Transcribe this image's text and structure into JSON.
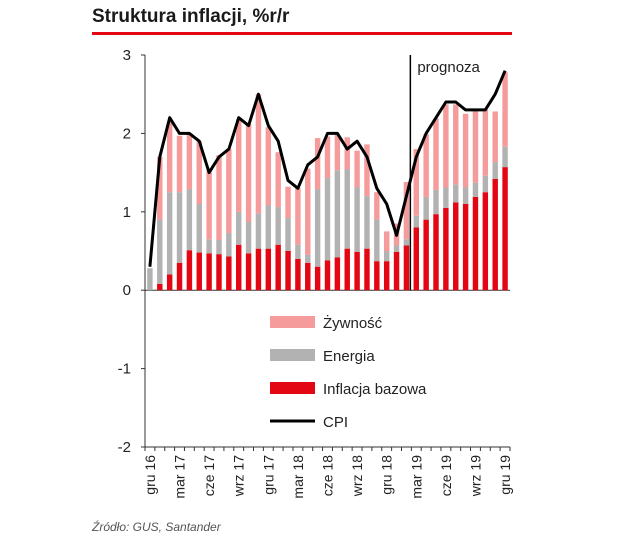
{
  "title": "Struktura inflacji, %r/r",
  "source": "Źródło: GUS, Santander",
  "chart_data": {
    "type": "bar",
    "stacked": true,
    "title": "Struktura inflacji, %r/r",
    "ylim": [
      -2,
      3
    ],
    "yticks": [
      "3",
      "2",
      "1",
      "0",
      "-1",
      "-2"
    ],
    "categories": [
      "gru 16",
      "sty 17",
      "lut 17",
      "mar 17",
      "kwi 17",
      "maj 17",
      "cze 17",
      "lip 17",
      "sie 17",
      "wrz 17",
      "paź 17",
      "lis 17",
      "gru 17",
      "sty 18",
      "lut 18",
      "mar 18",
      "kwi 18",
      "maj 18",
      "cze 18",
      "lip 18",
      "sie 18",
      "wrz 18",
      "paź 18",
      "lis 18",
      "gru 18",
      "sty 19",
      "lut 19",
      "mar 19",
      "kwi 19",
      "maj 19",
      "cze 19",
      "lip 19",
      "sie 19",
      "wrz 19",
      "paź 19",
      "lis 19",
      "gru 19"
    ],
    "xtick_labels": [
      "gru 16",
      "mar 17",
      "cze 17",
      "wrz 17",
      "gru 17",
      "mar 18",
      "cze 18",
      "wrz 18",
      "gru 18",
      "mar 19",
      "cze 19",
      "wrz 19",
      "gru 19"
    ],
    "series": [
      {
        "name": "Inflacja bazowa",
        "color": "#e30613",
        "values": [
          0.0,
          0.08,
          0.2,
          0.35,
          0.51,
          0.48,
          0.47,
          0.46,
          0.43,
          0.58,
          0.47,
          0.53,
          0.53,
          0.58,
          0.5,
          0.4,
          0.35,
          0.3,
          0.38,
          0.42,
          0.53,
          0.49,
          0.53,
          0.37,
          0.37,
          0.49,
          0.57,
          0.8,
          0.9,
          0.97,
          1.05,
          1.12,
          1.1,
          1.19,
          1.25,
          1.42,
          1.57
        ]
      },
      {
        "name": "Energia",
        "color": "#b2b2b2",
        "values": [
          0.28,
          0.82,
          1.05,
          0.9,
          0.78,
          0.62,
          0.18,
          0.18,
          0.3,
          0.42,
          0.4,
          0.45,
          0.55,
          0.48,
          0.42,
          0.18,
          0.1,
          0.99,
          1.05,
          1.11,
          1.01,
          0.82,
          0.67,
          0.53,
          0.13,
          0.08,
          0.08,
          0.15,
          0.29,
          0.31,
          0.26,
          0.23,
          0.21,
          0.18,
          0.21,
          0.21,
          0.26
        ]
      },
      {
        "name": "Żywność",
        "color": "#f59b9b",
        "values": [
          0.0,
          0.8,
          0.9,
          0.72,
          0.7,
          0.8,
          0.88,
          1.08,
          1.07,
          1.18,
          1.25,
          1.52,
          1.0,
          0.7,
          0.4,
          0.72,
          1.1,
          0.65,
          0.53,
          0.45,
          0.41,
          0.47,
          0.66,
          0.35,
          0.25,
          0.28,
          0.73,
          0.85,
          0.8,
          0.91,
          1.06,
          1.02,
          0.94,
          0.92,
          0.84,
          0.65,
          0.95
        ]
      },
      {
        "name": "CPI",
        "color": "#000000",
        "kind": "line",
        "values": [
          0.3,
          1.7,
          2.2,
          2.0,
          2.0,
          1.9,
          1.5,
          1.7,
          1.8,
          2.2,
          2.1,
          2.5,
          2.1,
          1.9,
          1.4,
          1.3,
          1.6,
          1.7,
          2.0,
          2.0,
          1.8,
          1.9,
          1.7,
          1.3,
          1.1,
          0.7,
          1.2,
          1.7,
          2.0,
          2.2,
          2.4,
          2.4,
          2.3,
          2.3,
          2.3,
          2.5,
          2.8
        ]
      }
    ],
    "annotation": {
      "label": "prognoza",
      "at": "mar 19"
    },
    "legend": [
      {
        "label": "Żywność",
        "kind": "bar",
        "color": "#f59b9b"
      },
      {
        "label": "Energia",
        "kind": "bar",
        "color": "#b2b2b2"
      },
      {
        "label": "Inflacja bazowa",
        "kind": "bar",
        "color": "#e30613"
      },
      {
        "label": "CPI",
        "kind": "line",
        "color": "#000000"
      }
    ],
    "legend_position": "lower-center"
  }
}
